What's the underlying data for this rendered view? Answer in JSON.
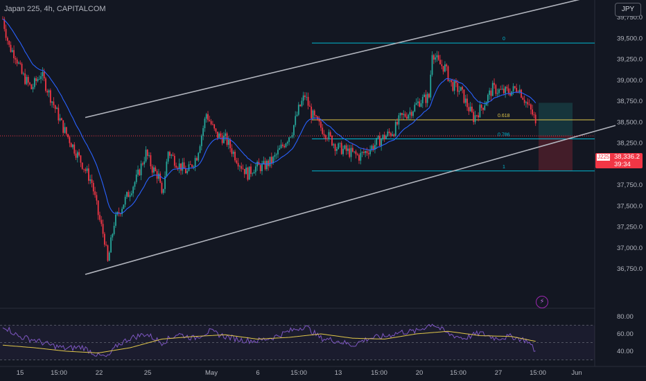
{
  "header": {
    "title": "Japan 225, 4h, CAPITALCOM",
    "currency_button": "JPY"
  },
  "price_badge": {
    "symbol": "J225",
    "price": "38,336.2",
    "countdown": "39:34"
  },
  "icons": {
    "alert": "lightning-icon"
  },
  "colors": {
    "up": "#26a69a",
    "down": "#f23645",
    "ema": "#2962ff",
    "channel": "#b2b5be",
    "fib_levels": "#00bcd4",
    "fib_618": "#e2c84a",
    "rsi": "#7e57c2",
    "rsi_ma": "#e2c84a"
  },
  "chart_data": [
    {
      "type": "candlestick",
      "title": "Japan 225, 4h, CAPITALCOM",
      "ylim": [
        36650,
        40050
      ],
      "y_ticks": [
        36750,
        37000,
        37250,
        37500,
        37750,
        38000,
        38250,
        38500,
        38750,
        39000,
        39250,
        39500,
        39750
      ],
      "y_tick_labels": [
        "36,750.0",
        "37,000.0",
        "37,250.0",
        "37,500.0",
        "37,750.0",
        "38,000.0",
        "38,250.0",
        "38,500.0",
        "38,750.0",
        "39,000.0",
        "39,250.0",
        "39,500.0",
        "39,750.0"
      ],
      "x_tick_labels": [
        "15",
        "15:00",
        "22",
        "25",
        "May",
        "6",
        "15:00",
        "13",
        "15:00",
        "20",
        "15:00",
        "27",
        "15:00",
        "Jun"
      ],
      "last_price": 38336.2,
      "close_path": [
        [
          0,
          39730
        ],
        [
          4,
          39400
        ],
        [
          8,
          39300
        ],
        [
          12,
          39070
        ],
        [
          18,
          38900
        ],
        [
          24,
          39080
        ],
        [
          30,
          38800
        ],
        [
          38,
          38430
        ],
        [
          50,
          38000
        ],
        [
          56,
          37780
        ],
        [
          60,
          37400
        ],
        [
          64,
          37100
        ],
        [
          66,
          36820
        ],
        [
          70,
          37300
        ],
        [
          76,
          37540
        ],
        [
          84,
          37820
        ],
        [
          90,
          38130
        ],
        [
          94,
          37950
        ],
        [
          98,
          37850
        ],
        [
          100,
          37600
        ],
        [
          104,
          38150
        ],
        [
          110,
          38000
        ],
        [
          116,
          37900
        ],
        [
          122,
          38100
        ],
        [
          128,
          38600
        ],
        [
          134,
          38350
        ],
        [
          140,
          38300
        ],
        [
          146,
          38100
        ],
        [
          150,
          37980
        ],
        [
          154,
          37880
        ],
        [
          158,
          37960
        ],
        [
          164,
          37970
        ],
        [
          170,
          38050
        ],
        [
          176,
          38220
        ],
        [
          182,
          38400
        ],
        [
          186,
          38650
        ],
        [
          190,
          38820
        ],
        [
          194,
          38600
        ],
        [
          198,
          38480
        ],
        [
          204,
          38350
        ],
        [
          210,
          38200
        ],
        [
          218,
          38140
        ],
        [
          224,
          38090
        ],
        [
          232,
          38200
        ],
        [
          238,
          38300
        ],
        [
          246,
          38400
        ],
        [
          250,
          38550
        ],
        [
          256,
          38620
        ],
        [
          262,
          38750
        ],
        [
          268,
          38800
        ],
        [
          270,
          39350
        ],
        [
          274,
          39200
        ],
        [
          278,
          39150
        ],
        [
          282,
          38950
        ],
        [
          288,
          38870
        ],
        [
          292,
          38700
        ],
        [
          296,
          38550
        ],
        [
          302,
          38700
        ],
        [
          308,
          38900
        ],
        [
          314,
          38860
        ],
        [
          320,
          38870
        ],
        [
          324,
          38920
        ],
        [
          330,
          38700
        ],
        [
          334,
          38560
        ],
        [
          336,
          38336
        ]
      ],
      "ema_label": "EMA",
      "rsi": {
        "ylim": [
          30,
          85
        ],
        "y_ticks": [
          40,
          60,
          80
        ],
        "y_tick_labels": [
          "40.00",
          "60.00",
          "80.00"
        ],
        "band": [
          30,
          70
        ],
        "path": [
          [
            0,
            70
          ],
          [
            10,
            57
          ],
          [
            20,
            53
          ],
          [
            30,
            47
          ],
          [
            40,
            43
          ],
          [
            50,
            45
          ],
          [
            60,
            35
          ],
          [
            66,
            33
          ],
          [
            72,
            47
          ],
          [
            80,
            55
          ],
          [
            90,
            60
          ],
          [
            100,
            50
          ],
          [
            110,
            60
          ],
          [
            120,
            55
          ],
          [
            130,
            63
          ],
          [
            140,
            57
          ],
          [
            150,
            53
          ],
          [
            160,
            52
          ],
          [
            170,
            56
          ],
          [
            180,
            63
          ],
          [
            190,
            69
          ],
          [
            200,
            55
          ],
          [
            210,
            52
          ],
          [
            220,
            47
          ],
          [
            230,
            55
          ],
          [
            240,
            57
          ],
          [
            250,
            62
          ],
          [
            260,
            63
          ],
          [
            270,
            72
          ],
          [
            280,
            60
          ],
          [
            290,
            55
          ],
          [
            300,
            61
          ],
          [
            310,
            55
          ],
          [
            320,
            57
          ],
          [
            330,
            52
          ],
          [
            336,
            37
          ]
        ],
        "ma_path": [
          [
            0,
            47
          ],
          [
            20,
            44
          ],
          [
            40,
            40
          ],
          [
            60,
            38
          ],
          [
            80,
            44
          ],
          [
            100,
            54
          ],
          [
            120,
            57
          ],
          [
            140,
            59
          ],
          [
            160,
            54
          ],
          [
            180,
            56
          ],
          [
            200,
            60
          ],
          [
            220,
            55
          ],
          [
            240,
            54
          ],
          [
            260,
            60
          ],
          [
            280,
            63
          ],
          [
            300,
            58
          ],
          [
            320,
            57
          ],
          [
            336,
            51
          ]
        ]
      },
      "drawings": {
        "channel_upper": [
          [
            [
              123,
              38555
            ],
            [
              933,
              40065
            ]
          ]
        ],
        "channel_lower": [
          [
            [
              123,
              36683
            ],
            [
              933,
              38460
            ]
          ]
        ],
        "fib_levels": [
          {
            "label": "0",
            "price": 39443
          },
          {
            "label": "0.618",
            "price": 38527
          },
          {
            "label": "0.786",
            "price": 38300
          },
          {
            "label": "1",
            "price": 37917
          }
        ],
        "position": {
          "entry": 38336,
          "target": 38730,
          "stop": 37917
        }
      }
    }
  ]
}
